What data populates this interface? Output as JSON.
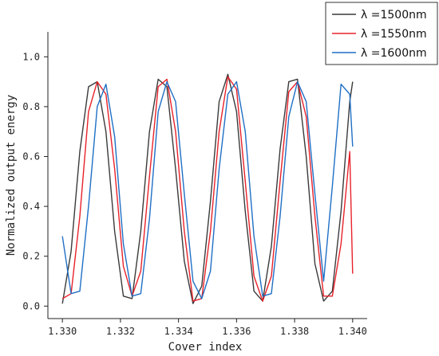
{
  "chart_data": {
    "type": "line",
    "title": "",
    "xlabel": "Cover index",
    "ylabel": "Normalized output energy",
    "xlim": [
      1.3295,
      1.3405
    ],
    "ylim": [
      -0.05,
      1.1
    ],
    "x_ticks": [
      1.33,
      1.332,
      1.334,
      1.336,
      1.338,
      1.34
    ],
    "x_tick_labels": [
      "1.330",
      "1.332",
      "1.334",
      "1.336",
      "1.338",
      "1.340"
    ],
    "y_ticks": [
      0.0,
      0.2,
      0.4,
      0.6,
      0.8,
      1.0
    ],
    "y_tick_labels": [
      "0.0",
      "0.2",
      "0.4",
      "0.6",
      "0.8",
      "1.0"
    ],
    "legend_position": "top-right",
    "grid": false,
    "series": [
      {
        "name": "λ =1500nm",
        "color": "#3a3a3a",
        "x": [
          1.33,
          1.3303,
          1.3306,
          1.3309,
          1.3312,
          1.3315,
          1.3318,
          1.3321,
          1.3324,
          1.3327,
          1.333,
          1.3333,
          1.3336,
          1.3339,
          1.3342,
          1.3345,
          1.3348,
          1.3351,
          1.3354,
          1.3357,
          1.336,
          1.3363,
          1.3366,
          1.3369,
          1.3372,
          1.3375,
          1.3378,
          1.3381,
          1.3384,
          1.3387,
          1.339,
          1.3393,
          1.3396,
          1.3399,
          1.34
        ],
        "values": [
          0.01,
          0.22,
          0.62,
          0.88,
          0.9,
          0.7,
          0.3,
          0.04,
          0.03,
          0.3,
          0.7,
          0.91,
          0.88,
          0.55,
          0.18,
          0.01,
          0.08,
          0.42,
          0.82,
          0.93,
          0.78,
          0.38,
          0.06,
          0.02,
          0.24,
          0.63,
          0.9,
          0.91,
          0.6,
          0.17,
          0.02,
          0.06,
          0.38,
          0.82,
          0.9
        ]
      },
      {
        "name": "λ =1550nm",
        "color": "#e8222a",
        "x": [
          1.33,
          1.3303,
          1.3306,
          1.3309,
          1.3312,
          1.3315,
          1.3318,
          1.3321,
          1.3324,
          1.3327,
          1.333,
          1.3333,
          1.3336,
          1.3339,
          1.3342,
          1.3345,
          1.3348,
          1.3351,
          1.3354,
          1.3357,
          1.336,
          1.3363,
          1.3366,
          1.3369,
          1.3372,
          1.3375,
          1.3378,
          1.3381,
          1.3384,
          1.3387,
          1.339,
          1.3393,
          1.3396,
          1.3399,
          1.34
        ],
        "values": [
          0.03,
          0.05,
          0.36,
          0.78,
          0.9,
          0.85,
          0.55,
          0.16,
          0.04,
          0.14,
          0.52,
          0.88,
          0.91,
          0.7,
          0.3,
          0.02,
          0.03,
          0.3,
          0.7,
          0.92,
          0.87,
          0.5,
          0.12,
          0.02,
          0.12,
          0.5,
          0.86,
          0.9,
          0.76,
          0.36,
          0.04,
          0.04,
          0.25,
          0.62,
          0.13
        ]
      },
      {
        "name": "λ =1600nm",
        "color": "#1f6fc5",
        "x": [
          1.33,
          1.3303,
          1.3306,
          1.3309,
          1.3312,
          1.3315,
          1.3318,
          1.3321,
          1.3324,
          1.3327,
          1.333,
          1.3333,
          1.3336,
          1.3339,
          1.3342,
          1.3345,
          1.3348,
          1.3351,
          1.3354,
          1.3357,
          1.336,
          1.3363,
          1.3366,
          1.3369,
          1.3372,
          1.3375,
          1.3378,
          1.3381,
          1.3384,
          1.3387,
          1.339,
          1.3393,
          1.3396,
          1.3399,
          1.34
        ],
        "values": [
          0.28,
          0.05,
          0.06,
          0.4,
          0.8,
          0.89,
          0.68,
          0.25,
          0.04,
          0.05,
          0.35,
          0.78,
          0.9,
          0.82,
          0.45,
          0.1,
          0.03,
          0.14,
          0.55,
          0.85,
          0.9,
          0.7,
          0.28,
          0.04,
          0.05,
          0.36,
          0.76,
          0.9,
          0.82,
          0.45,
          0.1,
          0.48,
          0.89,
          0.85,
          0.64
        ]
      }
    ]
  }
}
